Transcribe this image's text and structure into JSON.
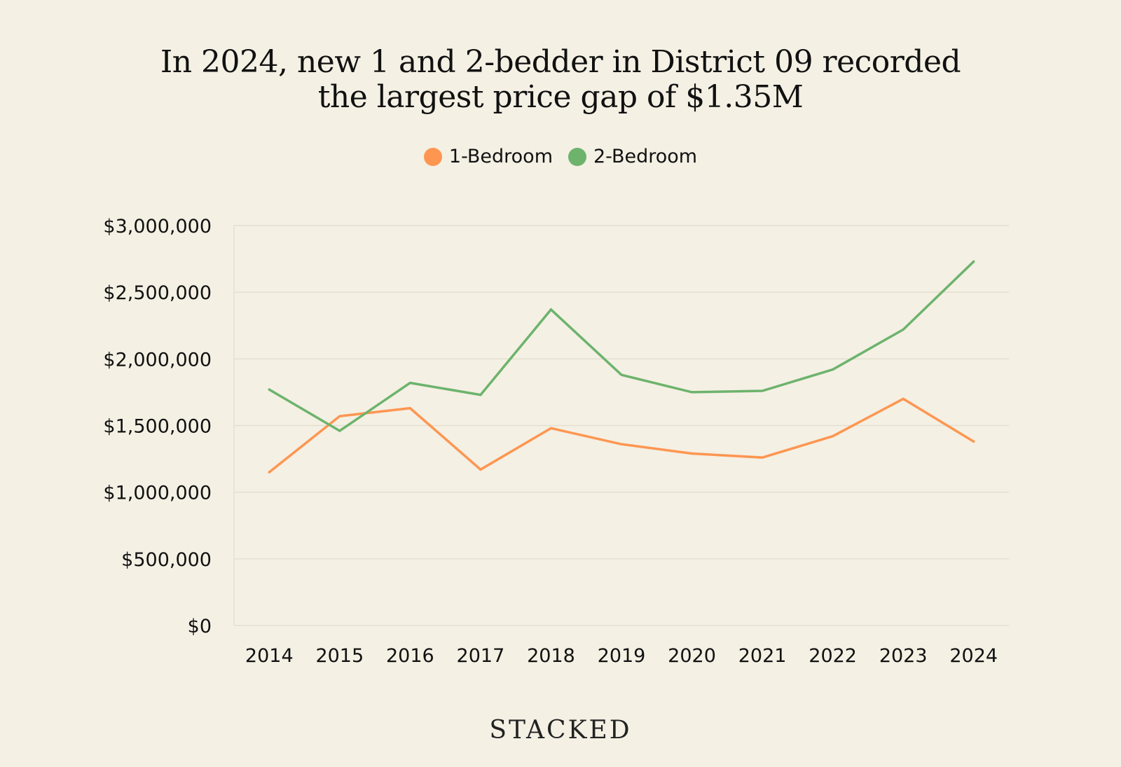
{
  "chart_data": {
    "type": "line",
    "title_lines": [
      "In 2024, new 1 and 2-bedder in District 09 recorded",
      "the largest price gap of $1.35M"
    ],
    "categories": [
      "2014",
      "2015",
      "2016",
      "2017",
      "2018",
      "2019",
      "2020",
      "2021",
      "2022",
      "2023",
      "2024"
    ],
    "series": [
      {
        "name": "1-Bedroom",
        "color": "#fe9651",
        "values": [
          1150000,
          1570000,
          1630000,
          1170000,
          1480000,
          1360000,
          1290000,
          1260000,
          1420000,
          1700000,
          1380000
        ]
      },
      {
        "name": "2-Bedroom",
        "color": "#6db36c",
        "values": [
          1770000,
          1460000,
          1820000,
          1730000,
          2370000,
          1880000,
          1750000,
          1760000,
          1920000,
          2220000,
          2730000
        ]
      }
    ],
    "ylim": [
      0,
      3000000
    ],
    "yticks": [
      0,
      500000,
      1000000,
      1500000,
      2000000,
      2500000,
      3000000
    ],
    "ytick_labels": [
      "$0",
      "$500,000",
      "$1,000,000",
      "$1,500,000",
      "$2,000,000",
      "$2,500,000",
      "$3,000,000"
    ],
    "grid": true,
    "legend_position": "top-center"
  },
  "brand": "STACKED"
}
